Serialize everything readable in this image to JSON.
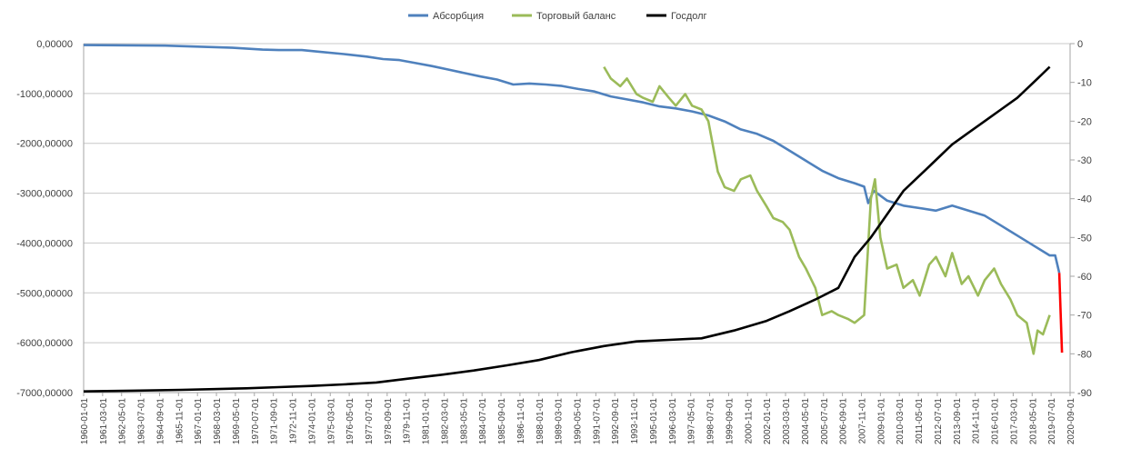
{
  "chart_data": {
    "type": "line",
    "title": "",
    "xlabel": "",
    "ylabel": "",
    "grid": true,
    "legend_position": "top",
    "x_tick_labels": [
      "1960-01-01",
      "1961-03-01",
      "1962-05-01",
      "1963-07-01",
      "1964-09-01",
      "1965-11-01",
      "1967-01-01",
      "1968-03-01",
      "1969-05-01",
      "1970-07-01",
      "1971-09-01",
      "1972-11-01",
      "1974-01-01",
      "1975-03-01",
      "1976-05-01",
      "1977-07-01",
      "1978-09-01",
      "1979-11-01",
      "1981-01-01",
      "1982-03-01",
      "1983-05-01",
      "1984-07-01",
      "1985-09-01",
      "1986-11-01",
      "1988-01-01",
      "1989-03-01",
      "1990-05-01",
      "1991-07-01",
      "1992-09-01",
      "1993-11-01",
      "1995-01-01",
      "1996-03-01",
      "1997-05-01",
      "1998-07-01",
      "1999-09-01",
      "2000-11-01",
      "2002-01-01",
      "2003-03-01",
      "2004-05-01",
      "2005-07-01",
      "2006-09-01",
      "2007-11-01",
      "2009-01-01",
      "2010-03-01",
      "2011-05-01",
      "2012-07-01",
      "2013-09-01",
      "2014-11-01",
      "2016-01-01",
      "2017-03-01",
      "2018-05-01",
      "2019-07-01",
      "2020-09-01"
    ],
    "x_range": [
      "1960-01-01",
      "2020-09-01"
    ],
    "y_left": {
      "range": [
        -7000,
        0
      ],
      "ticks": [
        0,
        -1000,
        -2000,
        -3000,
        -4000,
        -5000,
        -6000,
        -7000
      ],
      "tick_labels": [
        "0,00000",
        "-1000,00000",
        "-2000,00000",
        "-3000,00000",
        "-4000,00000",
        "-5000,00000",
        "-6000,00000",
        "-7000,00000"
      ]
    },
    "y_right": {
      "range": [
        -90,
        0
      ],
      "ticks": [
        0,
        -10,
        -20,
        -30,
        -40,
        -50,
        -60,
        -70,
        -80,
        -90
      ],
      "tick_labels": [
        "0",
        "-10",
        "-20",
        "-30",
        "-40",
        "-50",
        "-60",
        "-70",
        "-80",
        "-90"
      ]
    },
    "series": [
      {
        "name": "Абсорбция",
        "axis": "left",
        "color": "#4F81BD",
        "points": [
          [
            "1960-01-01",
            -30
          ],
          [
            "1965-01-01",
            -40
          ],
          [
            "1967-01-01",
            -60
          ],
          [
            "1969-01-01",
            -80
          ],
          [
            "1971-01-01",
            -120
          ],
          [
            "1972-01-01",
            -130
          ],
          [
            "1973-06-01",
            -130
          ],
          [
            "1974-06-01",
            -160
          ],
          [
            "1976-01-01",
            -210
          ],
          [
            "1977-06-01",
            -260
          ],
          [
            "1978-06-01",
            -310
          ],
          [
            "1979-06-01",
            -330
          ],
          [
            "1980-06-01",
            -390
          ],
          [
            "1981-06-01",
            -450
          ],
          [
            "1982-06-01",
            -520
          ],
          [
            "1983-06-01",
            -590
          ],
          [
            "1984-06-01",
            -660
          ],
          [
            "1985-06-01",
            -720
          ],
          [
            "1986-06-01",
            -820
          ],
          [
            "1987-06-01",
            -800
          ],
          [
            "1988-06-01",
            -820
          ],
          [
            "1989-06-01",
            -850
          ],
          [
            "1990-06-01",
            -910
          ],
          [
            "1991-06-01",
            -960
          ],
          [
            "1992-06-01",
            -1060
          ],
          [
            "1993-06-01",
            -1120
          ],
          [
            "1994-06-01",
            -1180
          ],
          [
            "1995-06-01",
            -1260
          ],
          [
            "1996-06-01",
            -1300
          ],
          [
            "1997-06-01",
            -1360
          ],
          [
            "1998-06-01",
            -1440
          ],
          [
            "1999-06-01",
            -1560
          ],
          [
            "2000-06-01",
            -1720
          ],
          [
            "2001-06-01",
            -1810
          ],
          [
            "2002-06-01",
            -1950
          ],
          [
            "2003-06-01",
            -2150
          ],
          [
            "2004-06-01",
            -2350
          ],
          [
            "2005-06-01",
            -2550
          ],
          [
            "2006-06-01",
            -2700
          ],
          [
            "2007-06-01",
            -2800
          ],
          [
            "2008-01-01",
            -2870
          ],
          [
            "2008-04-01",
            -3200
          ],
          [
            "2008-08-01",
            -2950
          ],
          [
            "2009-06-01",
            -3150
          ],
          [
            "2010-06-01",
            -3250
          ],
          [
            "2011-06-01",
            -3300
          ],
          [
            "2012-06-01",
            -3350
          ],
          [
            "2013-06-01",
            -3250
          ],
          [
            "2014-06-01",
            -3350
          ],
          [
            "2015-06-01",
            -3450
          ],
          [
            "2016-06-01",
            -3650
          ],
          [
            "2017-06-01",
            -3850
          ],
          [
            "2018-06-01",
            -4050
          ],
          [
            "2019-06-01",
            -4250
          ],
          [
            "2019-10-01",
            -4250
          ],
          [
            "2020-01-01",
            -4600
          ]
        ]
      },
      {
        "name": "Торговый баланс",
        "axis": "right",
        "color": "#9BBB59",
        "points": [
          [
            "1992-01-01",
            -6
          ],
          [
            "1992-06-01",
            -9
          ],
          [
            "1993-01-01",
            -11
          ],
          [
            "1993-06-01",
            -9
          ],
          [
            "1994-01-01",
            -13
          ],
          [
            "1994-06-01",
            -14
          ],
          [
            "1995-01-01",
            -15
          ],
          [
            "1995-06-01",
            -11
          ],
          [
            "1996-01-01",
            -14
          ],
          [
            "1996-06-01",
            -16
          ],
          [
            "1997-01-01",
            -13
          ],
          [
            "1997-06-01",
            -16
          ],
          [
            "1998-01-01",
            -17
          ],
          [
            "1998-06-01",
            -20
          ],
          [
            "1999-01-01",
            -33
          ],
          [
            "1999-06-01",
            -37
          ],
          [
            "2000-01-01",
            -38
          ],
          [
            "2000-06-01",
            -35
          ],
          [
            "2001-01-01",
            -34
          ],
          [
            "2001-06-01",
            -38
          ],
          [
            "2002-01-01",
            -42
          ],
          [
            "2002-06-01",
            -45
          ],
          [
            "2003-01-01",
            -46
          ],
          [
            "2003-06-01",
            -48
          ],
          [
            "2004-01-01",
            -55
          ],
          [
            "2004-06-01",
            -58
          ],
          [
            "2005-01-01",
            -63
          ],
          [
            "2005-06-01",
            -70
          ],
          [
            "2006-01-01",
            -69
          ],
          [
            "2006-06-01",
            -70
          ],
          [
            "2007-01-01",
            -71
          ],
          [
            "2007-06-01",
            -72
          ],
          [
            "2008-01-01",
            -70
          ],
          [
            "2008-06-01",
            -40
          ],
          [
            "2008-09-01",
            -35
          ],
          [
            "2009-01-01",
            -50
          ],
          [
            "2009-06-01",
            -58
          ],
          [
            "2010-01-01",
            -57
          ],
          [
            "2010-06-01",
            -63
          ],
          [
            "2011-01-01",
            -61
          ],
          [
            "2011-06-01",
            -65
          ],
          [
            "2012-01-01",
            -57
          ],
          [
            "2012-06-01",
            -55
          ],
          [
            "2013-01-01",
            -60
          ],
          [
            "2013-06-01",
            -54
          ],
          [
            "2014-01-01",
            -62
          ],
          [
            "2014-06-01",
            -60
          ],
          [
            "2015-01-01",
            -65
          ],
          [
            "2015-06-01",
            -61
          ],
          [
            "2016-01-01",
            -58
          ],
          [
            "2016-06-01",
            -62
          ],
          [
            "2017-01-01",
            -66
          ],
          [
            "2017-06-01",
            -70
          ],
          [
            "2018-01-01",
            -72
          ],
          [
            "2018-06-01",
            -80
          ],
          [
            "2018-09-01",
            -74
          ],
          [
            "2019-01-01",
            -75
          ],
          [
            "2019-06-01",
            -70
          ]
        ]
      },
      {
        "name": "Госдолг",
        "axis": "right",
        "color": "#000000",
        "points": [
          [
            "1960-01-01",
            -89.7
          ],
          [
            "1961-06-01",
            -89.6
          ],
          [
            "1963-01-01",
            -89.5
          ],
          [
            "1966-01-01",
            -89.3
          ],
          [
            "1968-01-01",
            -89.1
          ],
          [
            "1970-01-01",
            -88.9
          ],
          [
            "1972-01-01",
            -88.6
          ],
          [
            "1974-01-01",
            -88.3
          ],
          [
            "1976-01-01",
            -87.9
          ],
          [
            "1978-01-01",
            -87.4
          ],
          [
            "1980-01-01",
            -86.4
          ],
          [
            "1982-01-01",
            -85.4
          ],
          [
            "1984-01-01",
            -84.3
          ],
          [
            "1986-01-01",
            -83.0
          ],
          [
            "1988-01-01",
            -81.6
          ],
          [
            "1990-01-01",
            -79.6
          ],
          [
            "1992-01-01",
            -78.0
          ],
          [
            "1994-01-01",
            -76.8
          ],
          [
            "1996-01-01",
            -76.4
          ],
          [
            "1998-01-01",
            -76.0
          ],
          [
            "2000-01-01",
            -74.0
          ],
          [
            "2002-01-01",
            -71.5
          ],
          [
            "2003-06-01",
            -69.0
          ],
          [
            "2005-01-01",
            -66.0
          ],
          [
            "2006-06-01",
            -63.0
          ],
          [
            "2007-06-01",
            -55.0
          ],
          [
            "2008-06-01",
            -50.0
          ],
          [
            "2009-06-01",
            -44.0
          ],
          [
            "2010-06-01",
            -38.0
          ],
          [
            "2011-06-01",
            -34.0
          ],
          [
            "2012-06-01",
            -30.0
          ],
          [
            "2013-06-01",
            -26.0
          ],
          [
            "2014-06-01",
            -23.0
          ],
          [
            "2015-06-01",
            -20.0
          ],
          [
            "2016-06-01",
            -17.0
          ],
          [
            "2017-06-01",
            -14.0
          ],
          [
            "2018-06-01",
            -10.0
          ],
          [
            "2019-06-01",
            -6.0
          ]
        ]
      }
    ],
    "extra_segments": [
      {
        "color": "#FF0000",
        "axis": "left",
        "points": [
          [
            "2020-01-01",
            -4600
          ],
          [
            "2020-03-01",
            -6200
          ]
        ]
      }
    ]
  }
}
